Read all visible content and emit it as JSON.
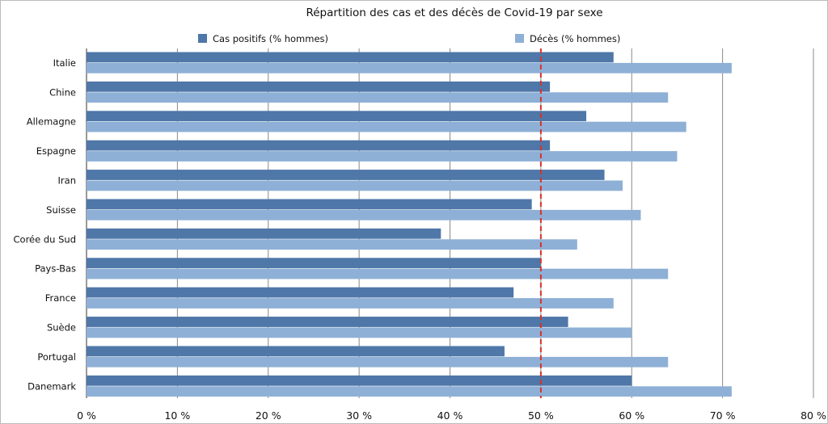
{
  "chart_data": {
    "type": "bar",
    "orientation": "horizontal",
    "title": "Répartition des cas et des décès de Covid-19 par sexe",
    "categories": [
      "Italie",
      "Chine",
      "Allemagne",
      "Espagne",
      "Iran",
      "Suisse",
      "Corée du Sud",
      "Pays-Bas",
      "France",
      "Suède",
      "Portugal",
      "Danemark"
    ],
    "series": [
      {
        "name": "Cas positifs (% hommes)",
        "color": "#4f77a8",
        "values": [
          58,
          51,
          55,
          51,
          57,
          49,
          39,
          50,
          47,
          53,
          46,
          60
        ]
      },
      {
        "name": "Décès (% hommes)",
        "color": "#8eb0d6",
        "values": [
          71,
          64,
          66,
          65,
          59,
          61,
          54,
          64,
          58,
          60,
          64,
          71
        ]
      }
    ],
    "xlim": [
      0,
      80
    ],
    "x_ticks": [
      {
        "value": 0,
        "label": "0 %"
      },
      {
        "value": 10,
        "label": "10 %"
      },
      {
        "value": 20,
        "label": "20 %"
      },
      {
        "value": 30,
        "label": "30 %"
      },
      {
        "value": 40,
        "label": "40 %"
      },
      {
        "value": 50,
        "label": "50 %"
      },
      {
        "value": 60,
        "label": "60 %"
      },
      {
        "value": 70,
        "label": "70 %"
      },
      {
        "value": 80,
        "label": "80 %"
      }
    ],
    "reference_line": {
      "value": 50,
      "color": "#d9312b",
      "style": "dashed"
    },
    "grid": true,
    "gridline_color": "#888888",
    "legend_position": "top"
  }
}
